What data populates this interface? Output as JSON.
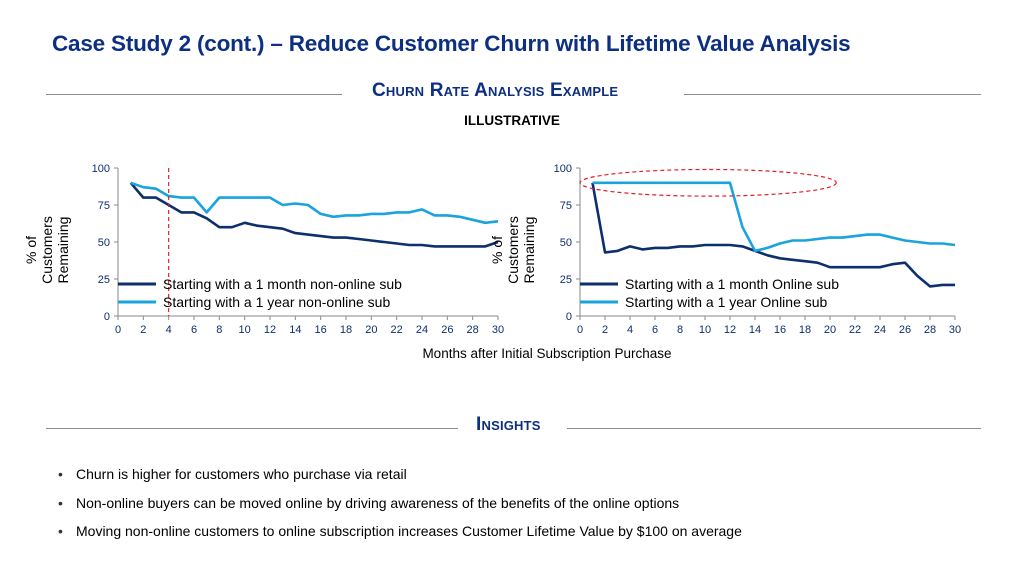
{
  "header": {
    "title": "Case Study 2 (cont.) – Reduce Customer Churn with Lifetime Value Analysis",
    "section": "Churn Rate Analysis Example",
    "tag": "ILLUSTRATIVE"
  },
  "x_caption": "Months after Initial Subscription Purchase",
  "insights": {
    "heading": "Insights",
    "items": [
      "Churn is higher for customers who purchase via retail",
      "Non-online buyers can be moved online by driving awareness of the benefits of the online options",
      "Moving non-online customers to online subscription increases Customer Lifetime Value by $100 on average"
    ]
  },
  "colors": {
    "dark_series": "#0d2f6e",
    "light_series": "#1aa3dc",
    "highlight": "#e0212a",
    "title": "#0d2f82"
  },
  "chart_data": [
    {
      "type": "line",
      "ylabel": "% of Customers Remaining",
      "xlabel": "",
      "xlim": [
        0,
        30
      ],
      "ylim": [
        0,
        100
      ],
      "xticks": [
        0,
        2,
        4,
        6,
        8,
        10,
        12,
        14,
        16,
        18,
        20,
        22,
        24,
        26,
        28,
        30
      ],
      "yticks": [
        0,
        25,
        50,
        75,
        100
      ],
      "grid": false,
      "legend_position": "lower-left",
      "annotation": {
        "type": "vertical-dashed-line",
        "x": 4
      },
      "series": [
        {
          "name": "Starting with a 1 month non-online sub",
          "color": "#0d2f6e",
          "x": [
            1,
            2,
            3,
            4,
            5,
            6,
            7,
            8,
            9,
            10,
            11,
            12,
            13,
            14,
            15,
            16,
            17,
            18,
            19,
            20,
            21,
            22,
            23,
            24,
            25,
            26,
            27,
            28,
            29,
            30
          ],
          "values": [
            90,
            80,
            80,
            75,
            70,
            70,
            66,
            60,
            60,
            63,
            61,
            60,
            59,
            56,
            55,
            54,
            53,
            53,
            52,
            51,
            50,
            49,
            48,
            48,
            47,
            47,
            47,
            47,
            47,
            50
          ]
        },
        {
          "name": "Starting with a 1 year non-online sub",
          "color": "#1aa3dc",
          "x": [
            1,
            2,
            3,
            4,
            5,
            6,
            7,
            8,
            9,
            10,
            11,
            12,
            13,
            14,
            15,
            16,
            17,
            18,
            19,
            20,
            21,
            22,
            23,
            24,
            25,
            26,
            27,
            28,
            29,
            30
          ],
          "values": [
            90,
            87,
            86,
            81,
            80,
            80,
            70,
            80,
            80,
            80,
            80,
            80,
            75,
            76,
            75,
            69,
            67,
            68,
            68,
            69,
            69,
            70,
            70,
            72,
            68,
            68,
            67,
            65,
            63,
            64
          ]
        }
      ]
    },
    {
      "type": "line",
      "ylabel": "% of Customers Remaining",
      "xlabel": "",
      "xlim": [
        0,
        30
      ],
      "ylim": [
        0,
        100
      ],
      "xticks": [
        0,
        2,
        4,
        6,
        8,
        10,
        12,
        14,
        16,
        18,
        20,
        22,
        24,
        26,
        28,
        30
      ],
      "yticks": [
        0,
        25,
        50,
        75,
        100
      ],
      "grid": false,
      "legend_position": "lower-right",
      "annotation": {
        "type": "dashed-ellipse",
        "x_range": [
          0,
          20.5
        ],
        "y_range": [
          81,
          99
        ]
      },
      "series": [
        {
          "name": "Starting with a 1 month Online sub",
          "color": "#0d2f6e",
          "x": [
            1,
            2,
            3,
            4,
            5,
            6,
            7,
            8,
            9,
            10,
            11,
            12,
            13,
            14,
            15,
            16,
            17,
            18,
            19,
            20,
            21,
            22,
            23,
            24,
            25,
            26,
            27,
            28,
            29,
            30
          ],
          "values": [
            90,
            43,
            44,
            47,
            45,
            46,
            46,
            47,
            47,
            48,
            48,
            48,
            47,
            44,
            41,
            39,
            38,
            37,
            36,
            33,
            33,
            33,
            33,
            33,
            35,
            36,
            27,
            20,
            21,
            21
          ]
        },
        {
          "name": "Starting with a 1 year Online sub",
          "color": "#1aa3dc",
          "x": [
            1,
            2,
            3,
            4,
            5,
            6,
            7,
            8,
            9,
            10,
            11,
            12,
            13,
            14,
            15,
            16,
            17,
            18,
            19,
            20,
            21,
            22,
            23,
            24,
            25,
            26,
            27,
            28,
            29,
            30
          ],
          "values": [
            90,
            90,
            90,
            90,
            90,
            90,
            90,
            90,
            90,
            90,
            90,
            90,
            60,
            44,
            46,
            49,
            51,
            51,
            52,
            53,
            53,
            54,
            55,
            55,
            53,
            51,
            50,
            49,
            49,
            48
          ]
        }
      ]
    }
  ]
}
